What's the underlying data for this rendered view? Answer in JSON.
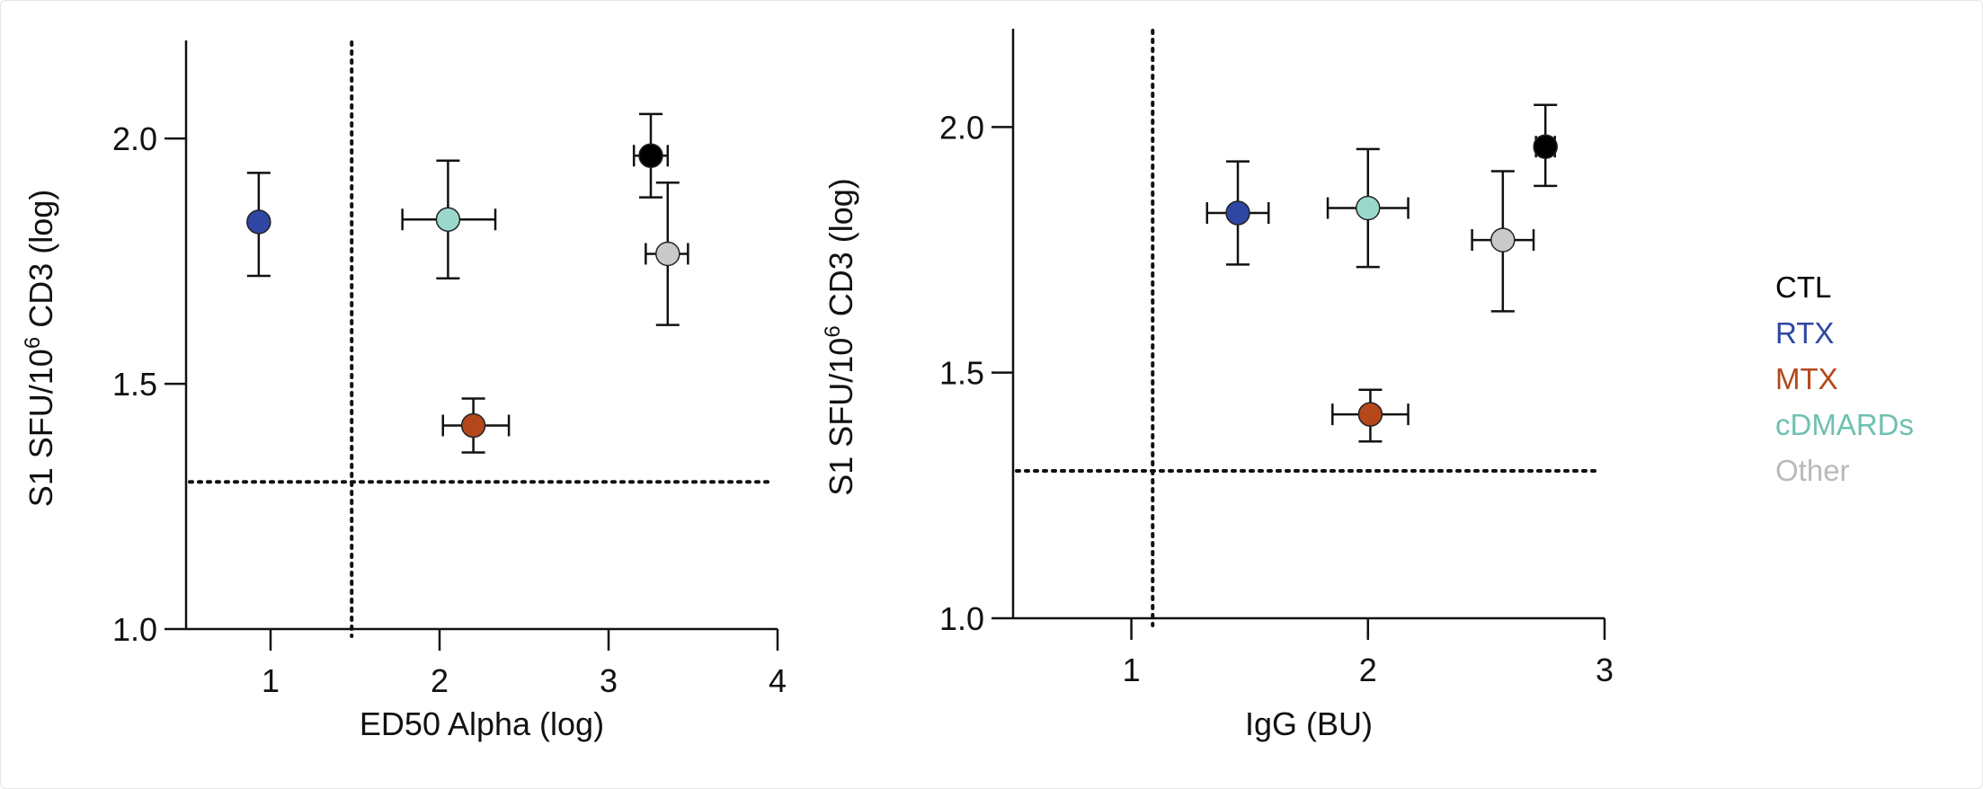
{
  "legend": {
    "placement": "right",
    "items": [
      {
        "label": "CTL",
        "color": "#000000"
      },
      {
        "label": "RTX",
        "color": "#2f47a3"
      },
      {
        "label": "MTX",
        "color": "#b4471b"
      },
      {
        "label": "cDMARDs",
        "color": "#6fc0b0"
      },
      {
        "label": "Other",
        "color": "#b9b9b9"
      }
    ]
  },
  "marker_fill": {
    "CTL": "#000000",
    "RTX": "#2f47a3",
    "MTX": "#b4471b",
    "cDMARDs": "#9ad8cb",
    "Other": "#c9c9c9"
  },
  "chart_data": [
    {
      "type": "scatter",
      "title": "",
      "xlabel": "ED50 Alpha (log)",
      "ylabel_parts": [
        "S1 SFU/10",
        "6",
        " CD3 (log)"
      ],
      "xlim": [
        0.5,
        4
      ],
      "ylim": [
        1.0,
        2.2
      ],
      "xticks": [
        "1",
        "2",
        "3",
        "4"
      ],
      "yticks": [
        "1.0",
        "1.5",
        "2.0"
      ],
      "grid": false,
      "threshold_x": 1.48,
      "threshold_y": 1.3,
      "series": [
        {
          "name": "RTX",
          "x": 0.93,
          "y": 1.83,
          "x_err": [
            0.9,
            0.96
          ],
          "y_err": [
            1.72,
            1.93
          ]
        },
        {
          "name": "cDMARDs",
          "x": 2.05,
          "y": 1.835,
          "x_err": [
            1.78,
            2.33
          ],
          "y_err": [
            1.715,
            1.955
          ]
        },
        {
          "name": "CTL",
          "x": 3.25,
          "y": 1.965,
          "x_err": [
            3.15,
            3.35
          ],
          "y_err": [
            1.88,
            2.05
          ]
        },
        {
          "name": "Other",
          "x": 3.35,
          "y": 1.765,
          "x_err": [
            3.22,
            3.47
          ],
          "y_err": [
            1.62,
            1.91
          ]
        },
        {
          "name": "MTX",
          "x": 2.2,
          "y": 1.415,
          "x_err": [
            2.02,
            2.41
          ],
          "y_err": [
            1.36,
            1.47
          ]
        }
      ]
    },
    {
      "type": "scatter",
      "title": "",
      "xlabel": "IgG (BU)",
      "ylabel_parts": [
        "S1 SFU/10",
        "6",
        " CD3 (log)"
      ],
      "xlim": [
        0.5,
        3
      ],
      "ylim": [
        1.0,
        2.2
      ],
      "xticks": [
        "1",
        "2",
        "3"
      ],
      "yticks": [
        "1.0",
        "1.5",
        "2.0"
      ],
      "grid": false,
      "threshold_x": 1.09,
      "threshold_y": 1.3,
      "series": [
        {
          "name": "RTX",
          "x": 1.45,
          "y": 1.825,
          "x_err": [
            1.32,
            1.58
          ],
          "y_err": [
            1.72,
            1.93
          ]
        },
        {
          "name": "cDMARDs",
          "x": 2.0,
          "y": 1.835,
          "x_err": [
            1.83,
            2.17
          ],
          "y_err": [
            1.715,
            1.955
          ]
        },
        {
          "name": "Other",
          "x": 2.57,
          "y": 1.77,
          "x_err": [
            2.44,
            2.7
          ],
          "y_err": [
            1.625,
            1.91
          ]
        },
        {
          "name": "CTL",
          "x": 2.75,
          "y": 1.96,
          "x_err": [
            2.71,
            2.79
          ],
          "y_err": [
            1.88,
            2.045
          ]
        },
        {
          "name": "MTX",
          "x": 2.01,
          "y": 1.415,
          "x_err": [
            1.85,
            2.17
          ],
          "y_err": [
            1.36,
            1.465
          ]
        }
      ]
    }
  ]
}
